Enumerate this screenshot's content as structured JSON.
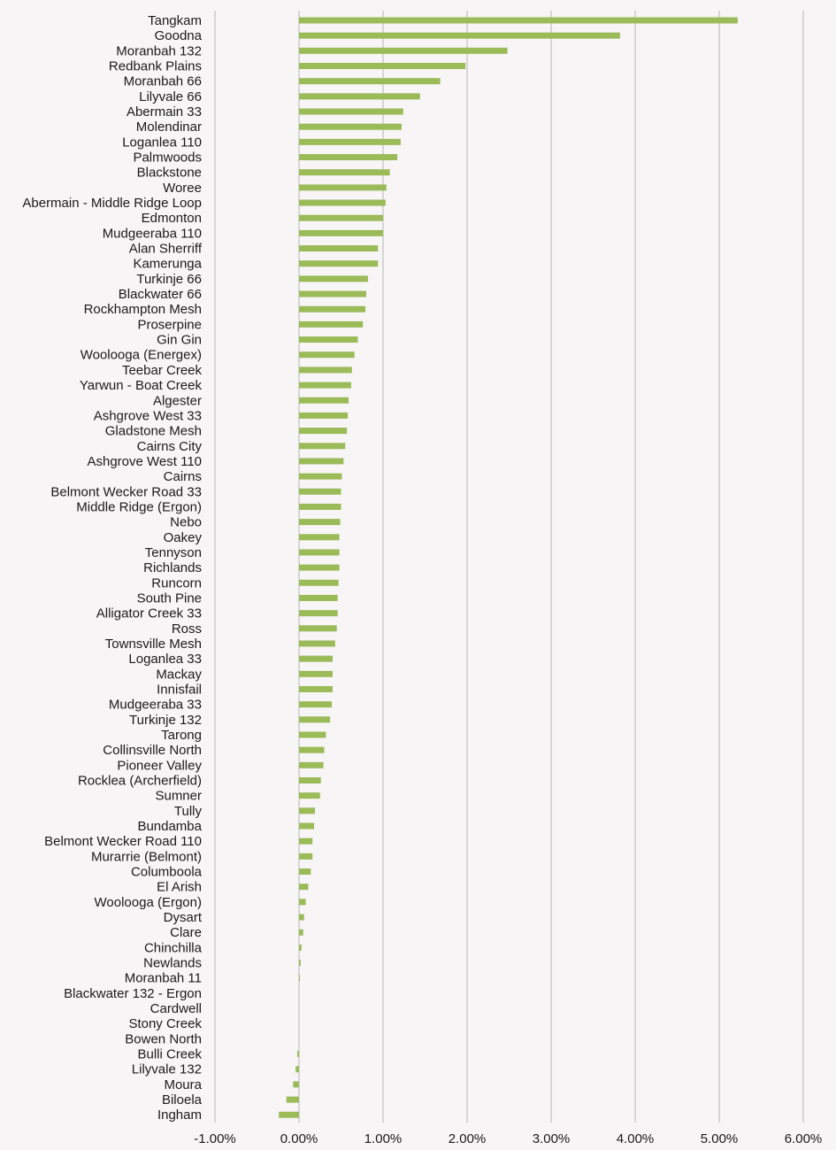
{
  "chart_data": {
    "type": "bar",
    "orientation": "horizontal",
    "title": "",
    "xlabel": "",
    "ylabel": "",
    "xlim": [
      -0.01,
      0.06
    ],
    "x_ticks": [
      -0.01,
      0,
      0.01,
      0.02,
      0.03,
      0.04,
      0.05,
      0.06
    ],
    "x_tick_labels": [
      "-1.00%",
      "0.00%",
      "1.00%",
      "2.00%",
      "3.00%",
      "4.00%",
      "5.00%",
      "6.00%"
    ],
    "grid": "vertical",
    "legend": "none",
    "bar_color": "#9bbb59",
    "grid_color": "#d6d6d6",
    "categories": [
      "Tangkam",
      "Goodna",
      "Moranbah 132",
      "Redbank Plains",
      "Moranbah 66",
      "Lilyvale 66",
      "Abermain 33",
      "Molendinar",
      "Loganlea 110",
      "Palmwoods",
      "Blackstone",
      "Woree",
      "Abermain - Middle Ridge Loop",
      "Edmonton",
      "Mudgeeraba 110",
      "Alan Sherriff",
      "Kamerunga",
      "Turkinje 66",
      "Blackwater 66",
      "Rockhampton Mesh",
      "Proserpine",
      "Gin Gin",
      "Woolooga (Energex)",
      "Teebar Creek",
      "Yarwun - Boat Creek",
      "Algester",
      "Ashgrove West 33",
      "Gladstone Mesh",
      "Cairns City",
      "Ashgrove West 110",
      "Cairns",
      "Belmont Wecker Road 33",
      "Middle Ridge (Ergon)",
      "Nebo",
      "Oakey",
      "Tennyson",
      "Richlands",
      "Runcorn",
      "South Pine",
      "Alligator Creek 33",
      "Ross",
      "Townsville Mesh",
      "Loganlea 33",
      "Mackay",
      "Innisfail",
      "Mudgeeraba 33",
      "Turkinje 132",
      "Tarong",
      "Collinsville North",
      "Pioneer Valley",
      "Rocklea (Archerfield)",
      "Sumner",
      "Tully",
      "Bundamba",
      "Belmont Wecker Road 110",
      "Murarrie (Belmont)",
      "Columboola",
      "El Arish",
      "Woolooga (Ergon)",
      "Dysart",
      "Clare",
      "Chinchilla",
      "Newlands",
      "Moranbah 11",
      "Blackwater 132 - Ergon",
      "Cardwell",
      "Stony Creek",
      "Bowen North",
      "Bulli Creek",
      "Lilyvale 132",
      "Moura",
      "Biloela",
      "Ingham"
    ],
    "values": [
      0.0522,
      0.0382,
      0.0248,
      0.0198,
      0.0168,
      0.0144,
      0.0124,
      0.0122,
      0.0121,
      0.0117,
      0.0108,
      0.0104,
      0.0103,
      0.01,
      0.01,
      0.0094,
      0.0094,
      0.0082,
      0.008,
      0.0079,
      0.0076,
      0.007,
      0.0066,
      0.0063,
      0.0062,
      0.0059,
      0.0058,
      0.0057,
      0.0055,
      0.0053,
      0.0051,
      0.005,
      0.005,
      0.0049,
      0.0048,
      0.0048,
      0.0048,
      0.0047,
      0.0046,
      0.0046,
      0.0045,
      0.0043,
      0.004,
      0.004,
      0.004,
      0.0039,
      0.0037,
      0.0032,
      0.003,
      0.0029,
      0.0026,
      0.0025,
      0.0019,
      0.0018,
      0.0016,
      0.0016,
      0.0014,
      0.0011,
      0.0008,
      0.0006,
      0.0005,
      0.0003,
      0.0002,
      0.0001,
      0.0,
      0.0,
      0.0,
      0.0,
      -0.0002,
      -0.0004,
      -0.0007,
      -0.0015,
      -0.0024
    ]
  }
}
